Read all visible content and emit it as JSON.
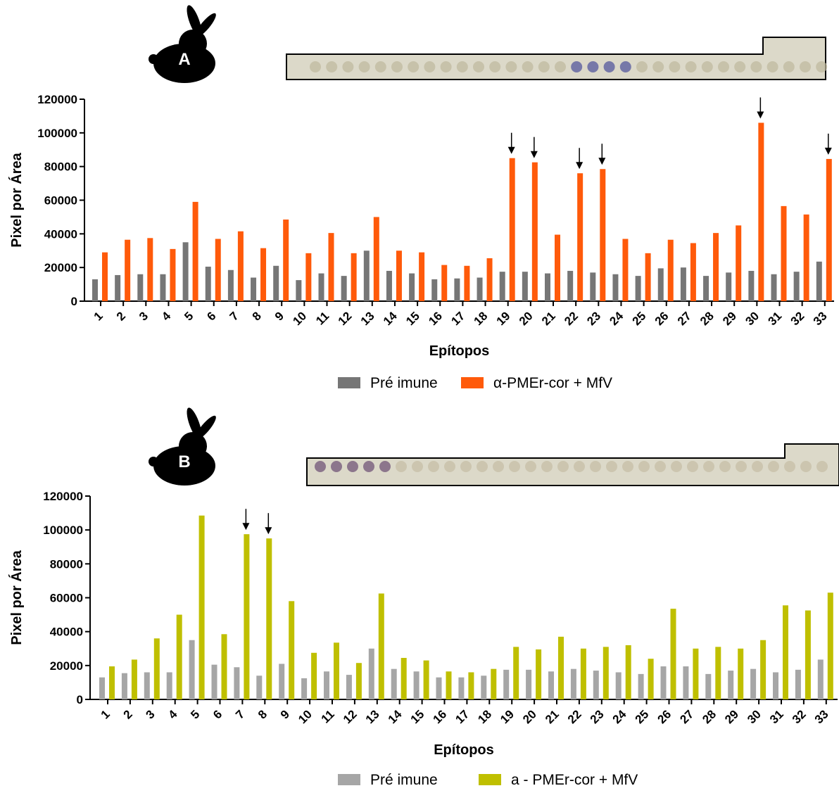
{
  "chart_data": [
    {
      "type": "bar",
      "panel_label": "A",
      "xlabel": "Epítopos",
      "ylabel": "Pixel por Área",
      "categories": [
        "1",
        "2",
        "3",
        "4",
        "5",
        "6",
        "7",
        "8",
        "9",
        "10",
        "11",
        "12",
        "13",
        "14",
        "15",
        "16",
        "17",
        "18",
        "19",
        "20",
        "21",
        "22",
        "23",
        "24",
        "25",
        "26",
        "27",
        "28",
        "29",
        "30",
        "31",
        "32",
        "33"
      ],
      "series": [
        {
          "name": "Pré imune",
          "color": "#767676",
          "values": [
            13000,
            15500,
            16000,
            16000,
            35000,
            20500,
            18500,
            14000,
            21000,
            12500,
            16500,
            15000,
            30000,
            18000,
            16500,
            13000,
            13500,
            14000,
            17500,
            17500,
            16500,
            18000,
            17000,
            16000,
            15000,
            19500,
            20000,
            15000,
            17000,
            18000,
            16000,
            17500,
            23500
          ]
        },
        {
          "name": "α-PMEr-cor + MfV",
          "color": "#ff5a0a",
          "values": [
            29000,
            36500,
            37500,
            31000,
            59000,
            37000,
            41500,
            31500,
            48500,
            28500,
            40500,
            28500,
            50000,
            30000,
            29000,
            21500,
            21000,
            25500,
            85000,
            82500,
            39500,
            76000,
            78500,
            37000,
            28500,
            36500,
            34500,
            40500,
            45000,
            106000,
            56500,
            51500,
            84500
          ]
        }
      ],
      "ylim": [
        0,
        120000
      ],
      "yticks": [
        0,
        20000,
        40000,
        60000,
        80000,
        100000,
        120000
      ]
    },
    {
      "type": "bar",
      "panel_label": "B",
      "xlabel": "Epítopos",
      "ylabel": "Pixel por Área",
      "categories": [
        "1",
        "2",
        "3",
        "4",
        "5",
        "6",
        "7",
        "8",
        "9",
        "10",
        "11",
        "12",
        "13",
        "14",
        "15",
        "16",
        "17",
        "18",
        "19",
        "20",
        "21",
        "22",
        "23",
        "24",
        "25",
        "26",
        "27",
        "28",
        "29",
        "30",
        "31",
        "32",
        "33"
      ],
      "series": [
        {
          "name": "Pré imune",
          "color": "#a6a6a6",
          "values": [
            13000,
            15500,
            16000,
            16000,
            35000,
            20500,
            19000,
            14000,
            21000,
            12500,
            16500,
            14500,
            30000,
            18000,
            16500,
            13000,
            13000,
            14000,
            17500,
            17500,
            16500,
            18000,
            17000,
            16000,
            15000,
            19500,
            19500,
            15000,
            17000,
            18000,
            16000,
            17500,
            23500
          ]
        },
        {
          "name": "a - PMEr-cor + MfV",
          "color": "#bfbf00",
          "values": [
            19500,
            23500,
            36000,
            50000,
            108500,
            38500,
            97500,
            95000,
            58000,
            27500,
            33500,
            21500,
            62500,
            24500,
            23000,
            16500,
            16000,
            18000,
            31000,
            29500,
            37000,
            30000,
            31000,
            32000,
            24000,
            53500,
            30000,
            31000,
            30000,
            35000,
            55500,
            52500,
            63000
          ]
        }
      ],
      "ylim": [
        0,
        120000
      ],
      "yticks": [
        0,
        20000,
        40000,
        60000,
        80000,
        100000,
        120000
      ]
    }
  ]
}
